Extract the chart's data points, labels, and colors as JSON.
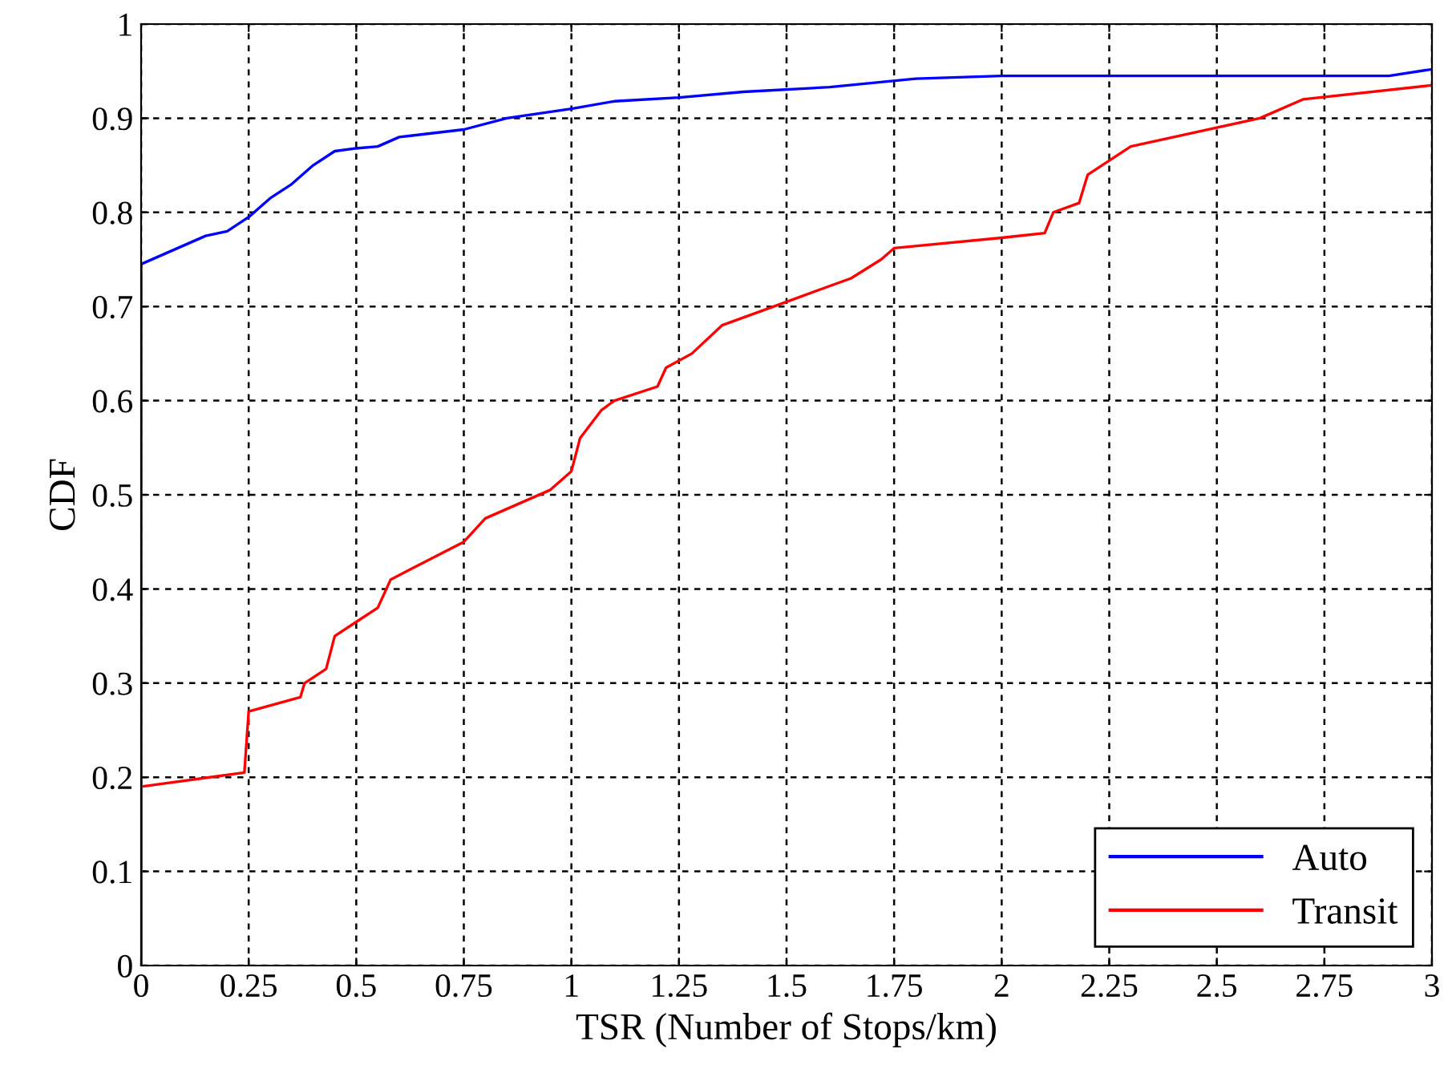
{
  "chart_data": {
    "type": "line",
    "xlabel": "TSR (Number of Stops/km)",
    "ylabel": "CDF",
    "xlim": [
      0,
      3
    ],
    "ylim": [
      0,
      1
    ],
    "xticks": [
      0,
      0.25,
      0.5,
      0.75,
      1,
      1.25,
      1.5,
      1.75,
      2,
      2.25,
      2.5,
      2.75,
      3
    ],
    "yticks": [
      0,
      0.1,
      0.2,
      0.3,
      0.4,
      0.5,
      0.6,
      0.7,
      0.8,
      0.9,
      1
    ],
    "grid": true,
    "legend": "bottom right",
    "line_style": "solid",
    "series": [
      {
        "name": "Auto",
        "color": "#0000ff",
        "x": [
          0,
          0,
          0.05,
          0.1,
          0.15,
          0.2,
          0.25,
          0.3,
          0.35,
          0.4,
          0.45,
          0.5,
          0.55,
          0.6,
          0.75,
          0.85,
          1.0,
          1.1,
          1.25,
          1.4,
          1.6,
          1.8,
          2.0,
          2.9,
          3.0
        ],
        "values": [
          0,
          0.745,
          0.755,
          0.765,
          0.775,
          0.78,
          0.795,
          0.815,
          0.83,
          0.85,
          0.865,
          0.868,
          0.87,
          0.88,
          0.888,
          0.9,
          0.91,
          0.918,
          0.922,
          0.928,
          0.933,
          0.942,
          0.945,
          0.945,
          0.952
        ]
      },
      {
        "name": "Transit",
        "color": "#ff0000",
        "x": [
          0,
          0,
          0.24,
          0.25,
          0.37,
          0.38,
          0.43,
          0.45,
          0.5,
          0.55,
          0.58,
          0.75,
          0.8,
          0.95,
          1.0,
          1.02,
          1.07,
          1.1,
          1.2,
          1.22,
          1.28,
          1.35,
          1.5,
          1.65,
          1.72,
          1.75,
          2.0,
          2.1,
          2.12,
          2.18,
          2.2,
          2.3,
          2.5,
          2.6,
          2.7,
          3.0
        ],
        "values": [
          0,
          0.19,
          0.205,
          0.27,
          0.285,
          0.3,
          0.315,
          0.35,
          0.365,
          0.38,
          0.41,
          0.45,
          0.475,
          0.505,
          0.525,
          0.56,
          0.59,
          0.6,
          0.615,
          0.635,
          0.65,
          0.68,
          0.705,
          0.73,
          0.75,
          0.762,
          0.773,
          0.778,
          0.8,
          0.81,
          0.84,
          0.87,
          0.89,
          0.9,
          0.92,
          0.935
        ]
      }
    ]
  }
}
